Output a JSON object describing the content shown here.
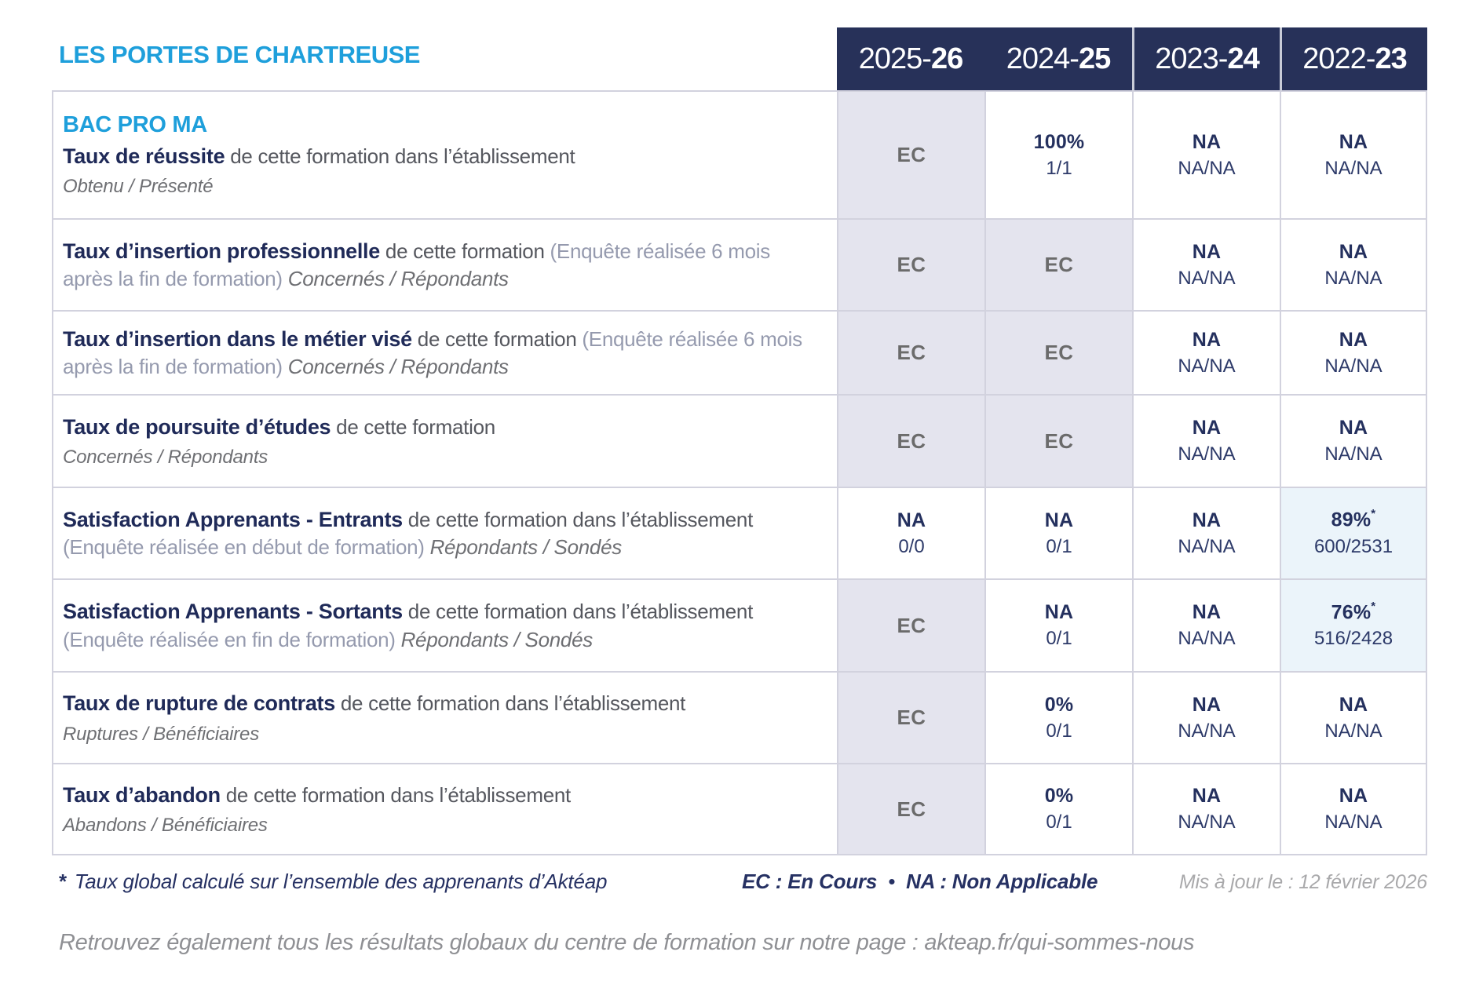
{
  "title": "LES PORTES DE CHARTREUSE",
  "header": {
    "years": [
      {
        "prefix": "2025-",
        "suffix": "26"
      },
      {
        "prefix": "2024-",
        "suffix": "25"
      },
      {
        "prefix": "2023-",
        "suffix": "24"
      },
      {
        "prefix": "2022-",
        "suffix": "23"
      }
    ]
  },
  "rows": [
    {
      "id": "taux-de-reussite",
      "badge": "BAC PRO MA",
      "label": [
        {
          "style": "bold",
          "text": "Taux de réussite"
        },
        {
          "style": "gray",
          "text": " de cette formation dans l’établissement"
        }
      ],
      "subline": "Obtenu / Présenté",
      "cells": [
        {
          "kind": "ec",
          "main": "EC",
          "bg": "gray"
        },
        {
          "kind": "value",
          "main": "100%",
          "sub": "1/1",
          "bg": "white"
        },
        {
          "kind": "value",
          "main": "NA",
          "sub": "NA/NA",
          "bg": "white"
        },
        {
          "kind": "value",
          "main": "NA",
          "sub": "NA/NA",
          "bg": "white"
        }
      ]
    },
    {
      "id": "taux-insertion-professionnelle",
      "label": [
        {
          "style": "bold",
          "text": "Taux d’insertion professionnelle"
        },
        {
          "style": "gray",
          "text": " de cette formation "
        },
        {
          "style": "paren",
          "text": "(Enquête réalisée 6 mois après la fin de formation) "
        },
        {
          "style": "italic",
          "text": "Concernés / Répondants"
        }
      ],
      "cells": [
        {
          "kind": "ec",
          "main": "EC",
          "bg": "gray"
        },
        {
          "kind": "ec",
          "main": "EC",
          "bg": "gray"
        },
        {
          "kind": "value",
          "main": "NA",
          "sub": "NA/NA",
          "bg": "white"
        },
        {
          "kind": "value",
          "main": "NA",
          "sub": "NA/NA",
          "bg": "white"
        }
      ]
    },
    {
      "id": "taux-insertion-metier-vise",
      "label": [
        {
          "style": "bold",
          "text": "Taux d’insertion dans le métier visé"
        },
        {
          "style": "gray",
          "text": " de cette formation "
        },
        {
          "style": "paren",
          "text": "(Enquête réalisée 6 mois après la fin de formation) "
        },
        {
          "style": "italic",
          "text": "Concernés / Répondants"
        }
      ],
      "cells": [
        {
          "kind": "ec",
          "main": "EC",
          "bg": "gray"
        },
        {
          "kind": "ec",
          "main": "EC",
          "bg": "gray"
        },
        {
          "kind": "value",
          "main": "NA",
          "sub": "NA/NA",
          "bg": "white"
        },
        {
          "kind": "value",
          "main": "NA",
          "sub": "NA/NA",
          "bg": "white"
        }
      ]
    },
    {
      "id": "taux-poursuite-etudes",
      "label": [
        {
          "style": "bold",
          "text": "Taux de poursuite d’études"
        },
        {
          "style": "gray",
          "text": " de cette formation"
        }
      ],
      "subline": "Concernés / Répondants",
      "cells": [
        {
          "kind": "ec",
          "main": "EC",
          "bg": "gray"
        },
        {
          "kind": "ec",
          "main": "EC",
          "bg": "gray"
        },
        {
          "kind": "value",
          "main": "NA",
          "sub": "NA/NA",
          "bg": "white"
        },
        {
          "kind": "value",
          "main": "NA",
          "sub": "NA/NA",
          "bg": "white"
        }
      ]
    },
    {
      "id": "satisfaction-apprenants-entrants",
      "label": [
        {
          "style": "bold",
          "text": "Satisfaction Apprenants - Entrants"
        },
        {
          "style": "gray",
          "text": " de cette formation dans l’établissement "
        },
        {
          "style": "paren",
          "text": "(Enquête réalisée en début de formation) "
        },
        {
          "style": "italic",
          "text": "Répondants / Sondés"
        }
      ],
      "cells": [
        {
          "kind": "value",
          "main": "NA",
          "sub": "0/0",
          "bg": "white"
        },
        {
          "kind": "value",
          "main": "NA",
          "sub": "0/1",
          "bg": "white"
        },
        {
          "kind": "value",
          "main": "NA",
          "sub": "NA/NA",
          "bg": "white"
        },
        {
          "kind": "value",
          "main": "89%",
          "sup": "*",
          "sub": "600/2531",
          "bg": "blue"
        }
      ]
    },
    {
      "id": "satisfaction-apprenants-sortants",
      "label": [
        {
          "style": "bold",
          "text": "Satisfaction Apprenants - Sortants"
        },
        {
          "style": "gray",
          "text": " de cette formation dans l’établissement "
        },
        {
          "style": "paren",
          "text": "(Enquête réalisée en fin de formation) "
        },
        {
          "style": "italic",
          "text": "Répondants / Sondés"
        }
      ],
      "cells": [
        {
          "kind": "ec",
          "main": "EC",
          "bg": "gray"
        },
        {
          "kind": "value",
          "main": "NA",
          "sub": "0/1",
          "bg": "white"
        },
        {
          "kind": "value",
          "main": "NA",
          "sub": "NA/NA",
          "bg": "white"
        },
        {
          "kind": "value",
          "main": "76%",
          "sup": "*",
          "sub": "516/2428",
          "bg": "blue"
        }
      ]
    },
    {
      "id": "taux-rupture-contrats",
      "label": [
        {
          "style": "bold",
          "text": "Taux de rupture de contrats"
        },
        {
          "style": "gray",
          "text": " de cette formation dans l’établissement"
        }
      ],
      "subline": "Ruptures / Bénéficiaires",
      "cells": [
        {
          "kind": "ec",
          "main": "EC",
          "bg": "gray"
        },
        {
          "kind": "value",
          "main": "0%",
          "sub": "0/1",
          "bg": "white"
        },
        {
          "kind": "value",
          "main": "NA",
          "sub": "NA/NA",
          "bg": "white"
        },
        {
          "kind": "value",
          "main": "NA",
          "sub": "NA/NA",
          "bg": "white"
        }
      ]
    },
    {
      "id": "taux-abandon",
      "label": [
        {
          "style": "bold",
          "text": "Taux d’abandon"
        },
        {
          "style": "gray",
          "text": " de cette formation dans l’établissement"
        }
      ],
      "subline": "Abandons / Bénéficiaires",
      "cells": [
        {
          "kind": "ec",
          "main": "EC",
          "bg": "gray"
        },
        {
          "kind": "value",
          "main": "0%",
          "sub": "0/1",
          "bg": "white"
        },
        {
          "kind": "value",
          "main": "NA",
          "sub": "NA/NA",
          "bg": "white"
        },
        {
          "kind": "value",
          "main": "NA",
          "sub": "NA/NA",
          "bg": "white"
        }
      ]
    }
  ],
  "footer": {
    "note_star": "*",
    "note": "Taux global calculé sur l’ensemble des apprenants d’Aktéap",
    "legend_ec": "EC : En Cours",
    "legend_sep": "•",
    "legend_na": "NA : Non Applicable",
    "updated": "Mis à jour le : 12 février 2026"
  },
  "bottom": {
    "text": "Retrouvez également tous les résultats globaux du centre de formation sur notre page : ",
    "link": "akteap.fr/qui-sommes-nous"
  },
  "colors": {
    "brand_blue": "#1e9fdb",
    "navy": "#273159",
    "navy_text": "#1f2a58",
    "navy_footer": "#263163",
    "cell_gray_bg": "#e4e4ee",
    "cell_blue_bg": "#ebf4fa",
    "border": "#d2d2de",
    "ec_text": "#6b6b6b"
  }
}
